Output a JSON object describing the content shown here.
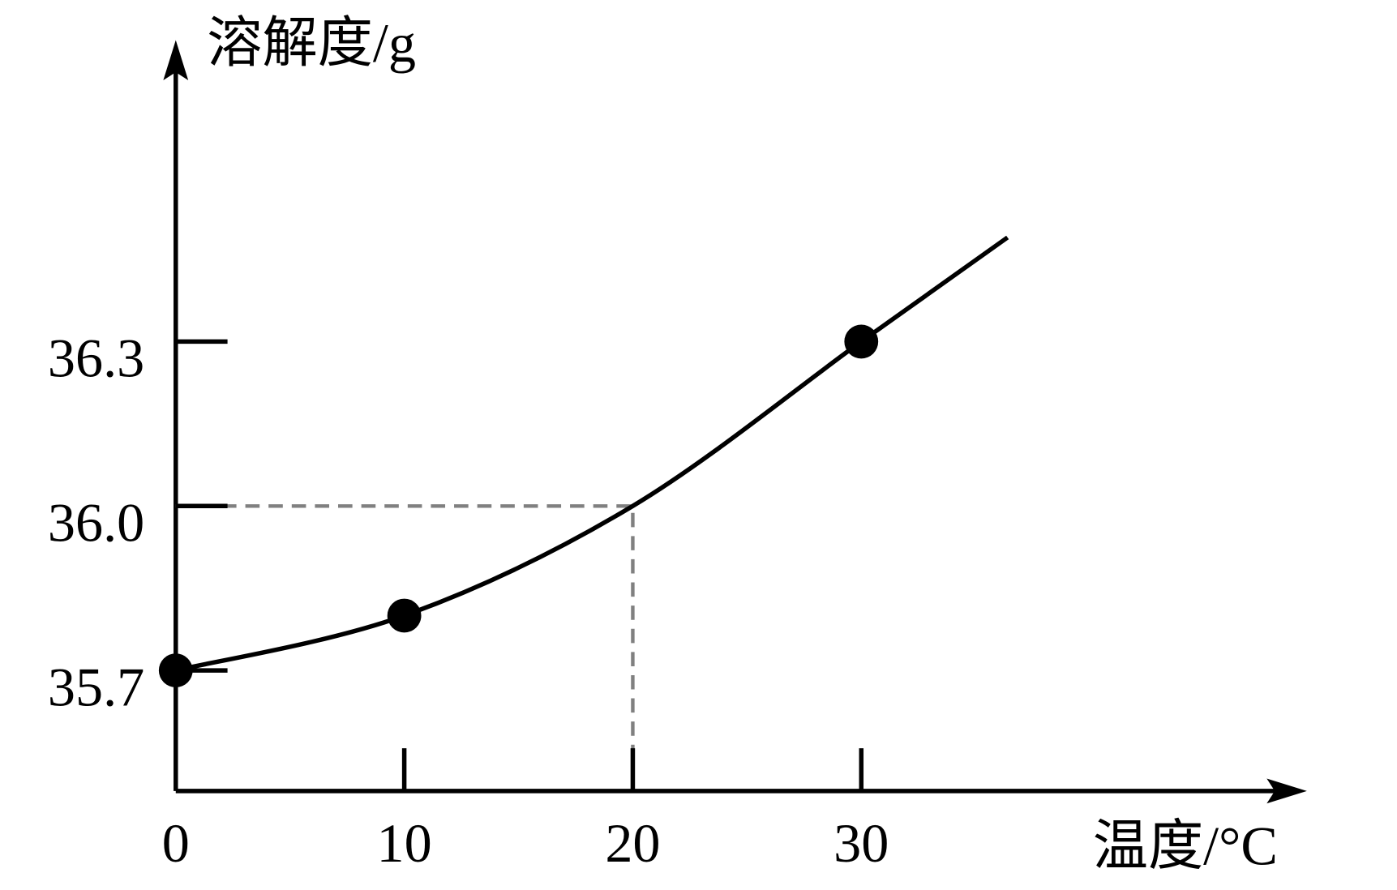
{
  "chart_data": {
    "type": "line",
    "y_label": "溶解度/g",
    "x_label": "温度/°C",
    "xlim": [
      0,
      49.5
    ],
    "ylim": [
      35.48,
      36.85
    ],
    "xticks": [
      0,
      10,
      20,
      30
    ],
    "yticks": [
      35.7,
      {
        "value": 36.0,
        "label": "36.0"
      },
      36.3
    ],
    "color": "#000000",
    "series": [
      {
        "x": [
          0,
          10,
          20,
          30,
          36.4
        ],
        "values": [
          35.7,
          35.8,
          36.0,
          36.3,
          36.49
        ]
      }
    ],
    "points": {
      "x": [
        0,
        10,
        30
      ],
      "values": [
        35.7,
        35.8,
        36.3
      ]
    },
    "guide": {
      "x": 20,
      "y": 36.0,
      "color": "#808080"
    }
  }
}
